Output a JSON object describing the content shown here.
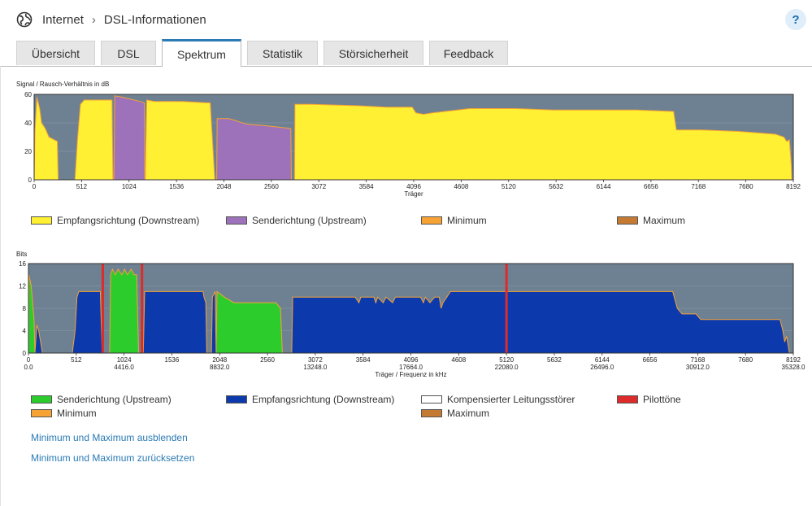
{
  "breadcrumb": {
    "root": "Internet",
    "page": "DSL-Informationen"
  },
  "help_label": "?",
  "tabs": [
    {
      "label": "Übersicht",
      "active": false
    },
    {
      "label": "DSL",
      "active": false
    },
    {
      "label": "Spektrum",
      "active": true
    },
    {
      "label": "Statistik",
      "active": false
    },
    {
      "label": "Störsicherheit",
      "active": false
    },
    {
      "label": "Feedback",
      "active": false
    }
  ],
  "colors": {
    "plot_bg": "#6e8192",
    "downstream_snr": "#fff033",
    "upstream_snr": "#9d72bb",
    "upstream_bits": "#2dcc2d",
    "downstream_bits": "#0c3aad",
    "minimum": "#f6a234",
    "maximum": "#c57a34",
    "pilot": "#dd2a2a",
    "compensated": "#ffffff"
  },
  "chart_data": [
    {
      "type": "area",
      "ylabel": "Signal / Rausch-Verhältnis in dB",
      "xlabel": "Träger",
      "xlim": [
        0,
        8192
      ],
      "ylim": [
        0,
        60
      ],
      "yticks": [
        "0",
        "20",
        "40",
        "60"
      ],
      "xticks": [
        {
          "value": 0,
          "label": "0"
        },
        {
          "value": 512,
          "label": "512"
        },
        {
          "value": 1024,
          "label": "1024"
        },
        {
          "value": 1536,
          "label": "1536"
        },
        {
          "value": 2048,
          "label": "2048"
        },
        {
          "value": 2560,
          "label": "2560"
        },
        {
          "value": 3072,
          "label": "3072"
        },
        {
          "value": 3584,
          "label": "3584"
        },
        {
          "value": 4096,
          "label": "4096"
        },
        {
          "value": 4608,
          "label": "4608"
        },
        {
          "value": 5120,
          "label": "5120"
        },
        {
          "value": 5632,
          "label": "5632"
        },
        {
          "value": 6144,
          "label": "6144"
        },
        {
          "value": 6656,
          "label": "6656"
        },
        {
          "value": 7168,
          "label": "7168"
        },
        {
          "value": 7680,
          "label": "7680"
        },
        {
          "value": 8192,
          "label": "8192"
        }
      ],
      "series": [
        {
          "name": "Empfangsrichtung (Downstream)",
          "color": "#fff033",
          "segments": [
            [
              [
                0,
                0
              ],
              [
                10,
                35
              ],
              [
                30,
                58
              ],
              [
                60,
                50
              ],
              [
                80,
                40
              ],
              [
                120,
                36
              ],
              [
                160,
                30
              ],
              [
                250,
                27
              ],
              [
                260,
                0
              ]
            ],
            [
              [
                440,
                0
              ],
              [
                470,
                30
              ],
              [
                500,
                53
              ],
              [
                540,
                56
              ],
              [
                840,
                56
              ],
              [
                850,
                0
              ]
            ],
            [
              [
                1200,
                0
              ],
              [
                1215,
                56
              ],
              [
                1300,
                55
              ],
              [
                1600,
                55
              ],
              [
                1900,
                54
              ],
              [
                1950,
                0
              ]
            ],
            [
              [
                2810,
                0
              ],
              [
                2815,
                53
              ],
              [
                3000,
                53
              ],
              [
                3500,
                52
              ],
              [
                3800,
                51
              ],
              [
                4080,
                51
              ],
              [
                4120,
                47
              ],
              [
                4200,
                46
              ],
              [
                4300,
                47
              ],
              [
                4700,
                50
              ],
              [
                5200,
                50
              ],
              [
                5600,
                49
              ],
              [
                6000,
                49
              ],
              [
                6500,
                49
              ],
              [
                6900,
                48
              ],
              [
                6930,
                35
              ],
              [
                7200,
                35
              ],
              [
                7600,
                34
              ],
              [
                8000,
                32
              ],
              [
                8090,
                30
              ],
              [
                8120,
                27
              ],
              [
                8150,
                28
              ],
              [
                8170,
                10
              ],
              [
                8175,
                0
              ]
            ]
          ]
        },
        {
          "name": "Senderichtung (Upstream)",
          "color": "#9d72bb",
          "segments": [
            [
              [
                860,
                0
              ],
              [
                870,
                59
              ],
              [
                950,
                58
              ],
              [
                1150,
                55
              ],
              [
                1190,
                54
              ],
              [
                1195,
                0
              ]
            ],
            [
              [
                1970,
                0
              ],
              [
                1975,
                43
              ],
              [
                2100,
                43
              ],
              [
                2300,
                39
              ],
              [
                2500,
                38
              ],
              [
                2770,
                36
              ],
              [
                2775,
                0
              ]
            ]
          ]
        }
      ],
      "legend": [
        {
          "label": "Empfangsrichtung (Downstream)",
          "color": "#fff033"
        },
        {
          "label": "Senderichtung (Upstream)",
          "color": "#9d72bb"
        },
        {
          "label": "Minimum",
          "color": "#f6a234"
        },
        {
          "label": "Maximum",
          "color": "#c57a34"
        }
      ]
    },
    {
      "type": "area",
      "ylabel": "Bits",
      "xlabel": "Träger / Frequenz in kHz",
      "xlim": [
        0,
        8192
      ],
      "ylim": [
        0,
        16
      ],
      "yticks": [
        "0",
        "4",
        "8",
        "12",
        "16"
      ],
      "xticks": [
        {
          "value": 0,
          "label": "0",
          "freq": "0.0"
        },
        {
          "value": 512,
          "label": "512"
        },
        {
          "value": 1024,
          "label": "1024",
          "freq": "4416.0"
        },
        {
          "value": 1536,
          "label": "1536"
        },
        {
          "value": 2048,
          "label": "2048",
          "freq": "8832.0"
        },
        {
          "value": 2560,
          "label": "2560"
        },
        {
          "value": 3072,
          "label": "3072",
          "freq": "13248.0"
        },
        {
          "value": 3584,
          "label": "3584"
        },
        {
          "value": 4096,
          "label": "4096",
          "freq": "17664.0"
        },
        {
          "value": 4608,
          "label": "4608"
        },
        {
          "value": 5120,
          "label": "5120",
          "freq": "22080.0"
        },
        {
          "value": 5632,
          "label": "5632"
        },
        {
          "value": 6144,
          "label": "6144",
          "freq": "26496.0"
        },
        {
          "value": 6656,
          "label": "6656"
        },
        {
          "value": 7168,
          "label": "7168",
          "freq": "30912.0"
        },
        {
          "value": 7680,
          "label": "7680"
        },
        {
          "value": 8192,
          "label": "8192",
          "freq": "35328.0"
        }
      ],
      "series": [
        {
          "name": "Senderichtung (Upstream)",
          "color": "#2dcc2d",
          "segments": [
            [
              [
                0,
                0
              ],
              [
                5,
                14
              ],
              [
                30,
                12
              ],
              [
                60,
                6
              ],
              [
                70,
                0
              ]
            ],
            [
              [
                870,
                0
              ],
              [
                880,
                14
              ],
              [
                900,
                15
              ],
              [
                930,
                14
              ],
              [
                960,
                15
              ],
              [
                1000,
                14
              ],
              [
                1030,
                15
              ],
              [
                1060,
                14
              ],
              [
                1100,
                15
              ],
              [
                1130,
                14
              ],
              [
                1160,
                14
              ],
              [
                1180,
                0
              ]
            ],
            [
              [
                2010,
                0
              ],
              [
                2020,
                11
              ],
              [
                2100,
                10
              ],
              [
                2200,
                9
              ],
              [
                2650,
                9
              ],
              [
                2700,
                8
              ],
              [
                2720,
                0
              ]
            ]
          ]
        },
        {
          "name": "Empfangsrichtung (Downstream)",
          "color": "#0c3aad",
          "segments": [
            [
              [
                70,
                0
              ],
              [
                90,
                5
              ],
              [
                110,
                4
              ],
              [
                150,
                0
              ]
            ],
            [
              [
                470,
                0
              ],
              [
                500,
                4
              ],
              [
                520,
                10
              ],
              [
                540,
                11
              ],
              [
                770,
                11
              ],
              [
                790,
                0
              ]
            ],
            [
              [
                1230,
                0
              ],
              [
                1245,
                11
              ],
              [
                1870,
                11
              ],
              [
                1880,
                10
              ],
              [
                1900,
                9
              ],
              [
                1910,
                0
              ]
            ],
            [
              [
                1960,
                0
              ],
              [
                1970,
                10
              ],
              [
                2000,
                11
              ],
              [
                2010,
                0
              ]
            ],
            [
              [
                2820,
                0
              ],
              [
                2830,
                10
              ],
              [
                3500,
                10
              ],
              [
                3540,
                9
              ],
              [
                3560,
                10
              ],
              [
                3700,
                10
              ],
              [
                3720,
                9
              ],
              [
                3740,
                10
              ],
              [
                3800,
                9
              ],
              [
                3830,
                10
              ],
              [
                3900,
                9
              ],
              [
                3930,
                10
              ],
              [
                4200,
                10
              ],
              [
                4230,
                9
              ],
              [
                4250,
                10
              ],
              [
                4300,
                9
              ],
              [
                4350,
                10
              ],
              [
                4400,
                10
              ],
              [
                4420,
                8
              ],
              [
                4440,
                9
              ],
              [
                4480,
                10
              ],
              [
                4520,
                11
              ],
              [
                6900,
                11
              ],
              [
                6950,
                8
              ],
              [
                7000,
                7
              ],
              [
                7150,
                7
              ],
              [
                7200,
                6
              ],
              [
                7800,
                6
              ],
              [
                8050,
                6
              ],
              [
                8080,
                4
              ],
              [
                8100,
                2
              ],
              [
                8120,
                3
              ],
              [
                8140,
                1
              ],
              [
                8150,
                0
              ]
            ]
          ]
        }
      ],
      "pilot_tones": [
        796,
        1216,
        5120
      ],
      "legend": [
        {
          "label": "Senderichtung (Upstream)",
          "color": "#2dcc2d"
        },
        {
          "label": "Empfangsrichtung (Downstream)",
          "color": "#0c3aad"
        },
        {
          "label": "Kompensierter Leitungsstörer",
          "color": "#ffffff"
        },
        {
          "label": "Pilottöne",
          "color": "#dd2a2a"
        },
        {
          "label": "Minimum",
          "color": "#f6a234"
        },
        {
          "label": "Maximum",
          "color": "#c57a34"
        }
      ]
    }
  ],
  "links": {
    "hide_minmax": "Minimum und Maximum ausblenden",
    "reset_minmax": "Minimum und Maximum zurücksetzen"
  }
}
